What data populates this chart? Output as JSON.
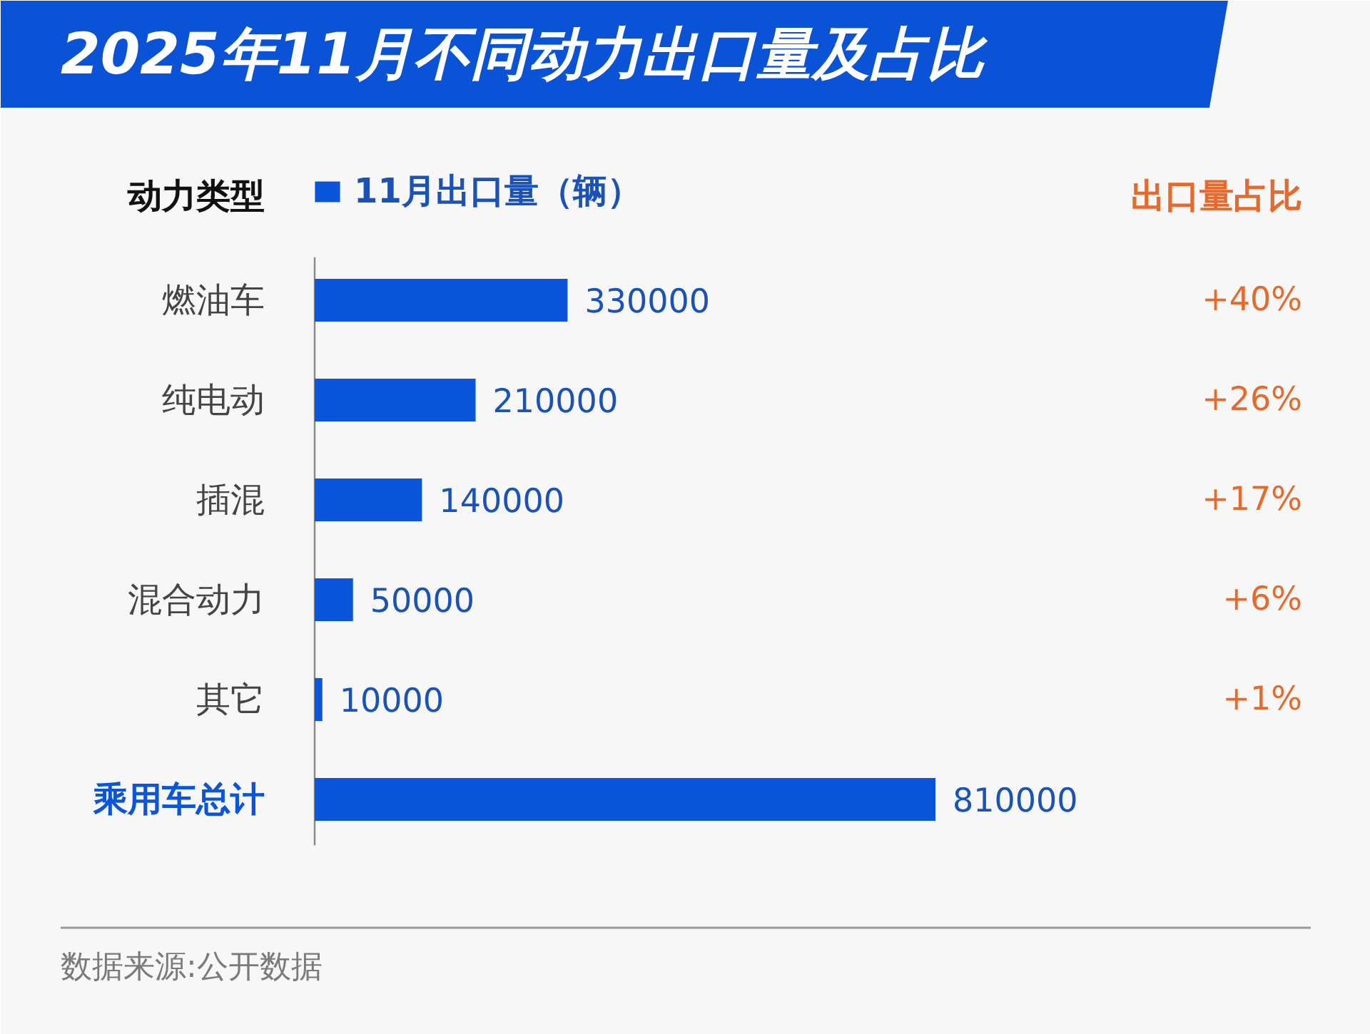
{
  "chart_data": {
    "type": "bar",
    "orientation": "horizontal",
    "title": "2025年11月不同动力出口量及占比",
    "ylabel": "动力类型",
    "categories": [
      "燃油车",
      "纯电动",
      "插混",
      "混合动力",
      "其它",
      "乘用车总计"
    ],
    "series": [
      {
        "name": "11月出口量（辆）",
        "color": "#0a55d9",
        "values": [
          330000,
          210000,
          140000,
          50000,
          10000,
          810000
        ]
      }
    ],
    "data_labels": true,
    "legend": "top left",
    "annotations": [
      "出口量占比",
      "+40%",
      "+26%",
      "+17%",
      "+6%",
      "+1%",
      "数据来源:公开数据"
    ]
  }
}
